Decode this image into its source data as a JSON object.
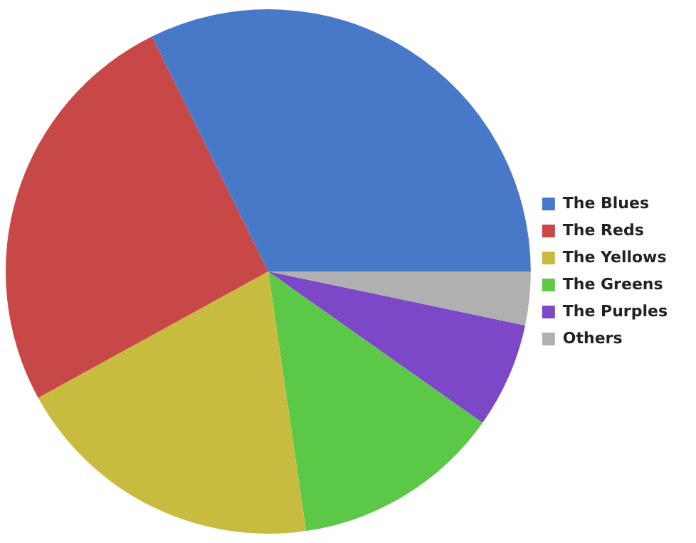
{
  "chart_data": {
    "type": "pie",
    "categories": [
      "The Blues",
      "The Reds",
      "The Yellows",
      "The Greens",
      "The Purples",
      "Others"
    ],
    "values": [
      32.3,
      25.7,
      19.3,
      12.9,
      6.5,
      3.3
    ],
    "colors": [
      "#4878c8",
      "#c84848",
      "#c8bc40",
      "#5cc848",
      "#7c48c8",
      "#b0b0b0"
    ],
    "legend": "right"
  }
}
